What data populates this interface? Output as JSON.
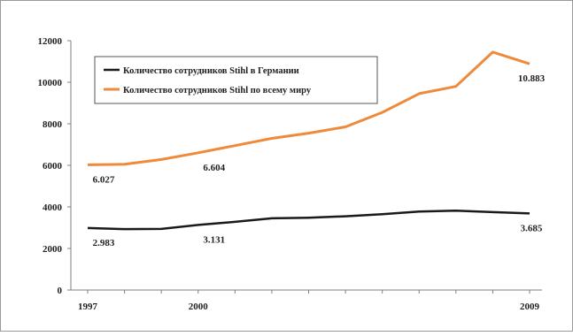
{
  "chart_data": {
    "type": "line",
    "title": "",
    "xlabel": "",
    "ylabel": "",
    "x": [
      1997,
      1998,
      1999,
      2000,
      2001,
      2002,
      2003,
      2004,
      2005,
      2006,
      2007,
      2008,
      2009
    ],
    "x_tick_labels": [
      "1997",
      "2000",
      "2009"
    ],
    "x_tick_values": [
      1997,
      2000,
      2009
    ],
    "ylim": [
      0,
      12000
    ],
    "y_ticks": [
      0,
      2000,
      4000,
      6000,
      8000,
      10000,
      12000
    ],
    "grid": false,
    "legend_position": "top-left",
    "series": [
      {
        "name": "Количество сотрудников Stihl в Германии",
        "color": "#1a1a1a",
        "values": [
          2983,
          2930,
          2940,
          3131,
          3280,
          3450,
          3480,
          3550,
          3650,
          3780,
          3820,
          3750,
          3685
        ]
      },
      {
        "name": "Количество сотрудников Stihl по всему миру",
        "color": "#ee8a3c",
        "values": [
          6027,
          6050,
          6280,
          6604,
          6950,
          7300,
          7550,
          7850,
          8550,
          9450,
          9800,
          11450,
          10883
        ]
      }
    ],
    "annotations": [
      {
        "series": 0,
        "x": 1997,
        "text": "2.983"
      },
      {
        "series": 0,
        "x": 2000,
        "text": "3.131"
      },
      {
        "series": 0,
        "x": 2009,
        "text": "3.685"
      },
      {
        "series": 1,
        "x": 1997,
        "text": "6.027"
      },
      {
        "series": 1,
        "x": 2000,
        "text": "6.604"
      },
      {
        "series": 1,
        "x": 2009,
        "text": "10.883"
      }
    ]
  }
}
